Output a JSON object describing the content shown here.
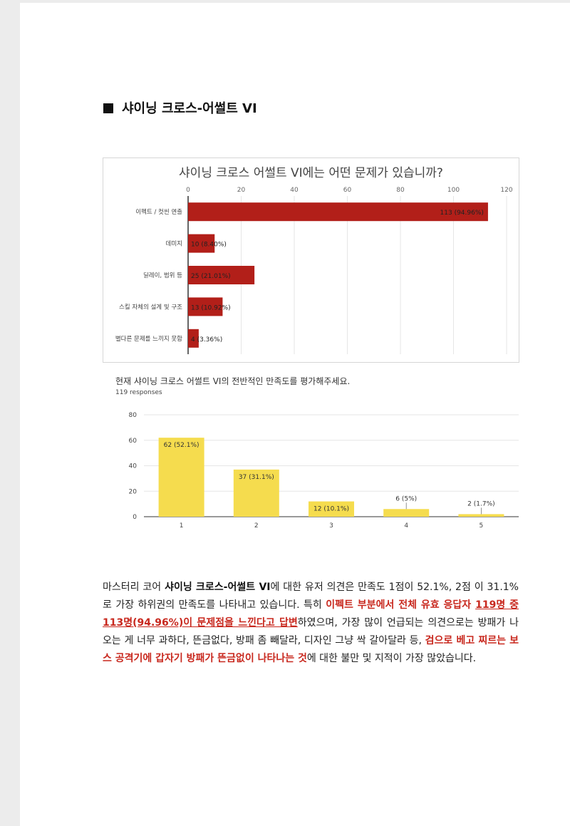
{
  "heading": {
    "text": "샤이닝 크로스-어썰트 VI"
  },
  "chart_data": [
    {
      "type": "bar",
      "orientation": "horizontal",
      "title": "샤이닝 크로스 어썰트 VI에는 어떤 문제가 있습니까?",
      "categories": [
        "이펙트 / 컷씬 연출",
        "데미지",
        "딜레이, 범위 등",
        "스킬 자체의 설계 및 구조",
        "별다른 문제를 느끼지 못함"
      ],
      "values": [
        113,
        10,
        25,
        13,
        4
      ],
      "labels": [
        "113 (94.96%)",
        "10 (8.40%)",
        "25 (21.01%)",
        "13 (10.92%)",
        "4 (3.36%)"
      ],
      "xlim": [
        0,
        120
      ],
      "ticks": [
        "0",
        "20",
        "40",
        "60",
        "80",
        "100",
        "120"
      ],
      "color": "#b21f19"
    },
    {
      "type": "bar",
      "orientation": "vertical",
      "title": "현재 샤이닝 크로스 어썰트 VI의 전반적인 만족도를 평가해주세요.",
      "subtitle": "119 responses",
      "categories": [
        "1",
        "2",
        "3",
        "4",
        "5"
      ],
      "values": [
        62,
        37,
        12,
        6,
        2
      ],
      "labels": [
        "62 (52.1%)",
        "37 (31.1%)",
        "12 (10.1%)",
        "6 (5%)",
        "2 (1.7%)"
      ],
      "ylim": [
        0,
        80
      ],
      "ticks": [
        "0",
        "20",
        "40",
        "60",
        "80"
      ],
      "color": "#f5dc4e"
    }
  ],
  "paragraph": {
    "s1": "마스터리 코어 ",
    "s2": "샤이닝 크로스-어썰트 VI",
    "s3": "에 대한 유저 의견은 만족도 1점이 52.1%, 2점 이 31.1%로 가장 하위권의 만족도를 나타내고 있습니다. 특히 ",
    "s4": "이펙트 부분에서 전체 유효 응답자 ",
    "s5": "119명 중 113명(94.96%)이 문제점을 느낀다고 답변",
    "s6": "하였으며, 가장 많이 언급되는 의견으로는 방패가 나오는 게 너무 과하다, 뜬금없다, 방패 좀 빼달라, 디자인 그냥 싹 갈아달라 등, ",
    "s7": "검으로 베고 찌르는 보스 공격기에 갑자기 방패가 뜬금없이 나타나는 것",
    "s8": "에 대한 불만 및 지적이 가장 많았습니다."
  }
}
